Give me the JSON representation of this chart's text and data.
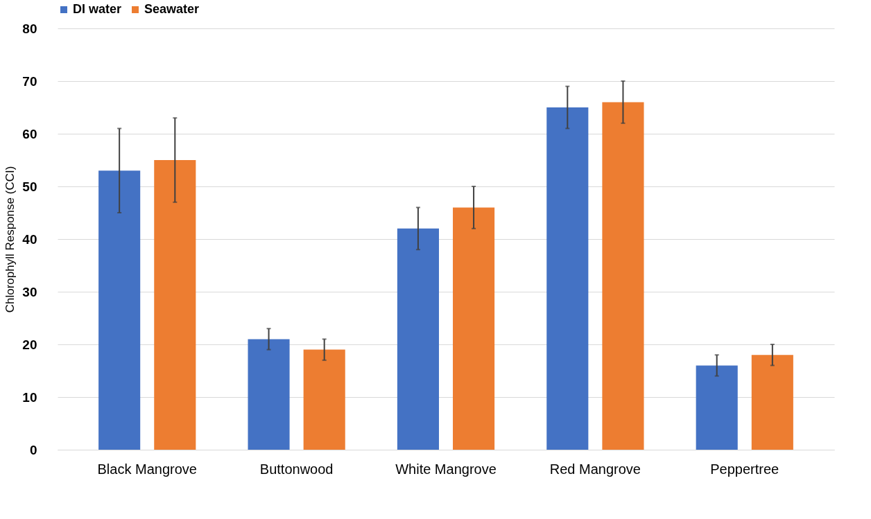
{
  "chart_data": {
    "type": "bar",
    "ylabel": "Chlorophyll Response (CCI)",
    "categories": [
      "Black Mangrove",
      "Buttonwood",
      "White Mangrove",
      "Red Mangrove",
      "Peppertree"
    ],
    "series": [
      {
        "name": "DI water",
        "color": "#4472c4",
        "values": [
          53,
          21,
          42,
          65,
          16
        ],
        "errors": [
          8,
          2,
          4,
          4,
          2
        ]
      },
      {
        "name": "Seawater",
        "color": "#ed7d31",
        "values": [
          55,
          19,
          46,
          66,
          18
        ],
        "errors": [
          8,
          2,
          4,
          4,
          2
        ]
      }
    ],
    "ylim": [
      0,
      80
    ],
    "yticks": [
      0,
      10,
      20,
      30,
      40,
      50,
      60,
      70,
      80
    ],
    "grid": "y",
    "legend": "top"
  }
}
